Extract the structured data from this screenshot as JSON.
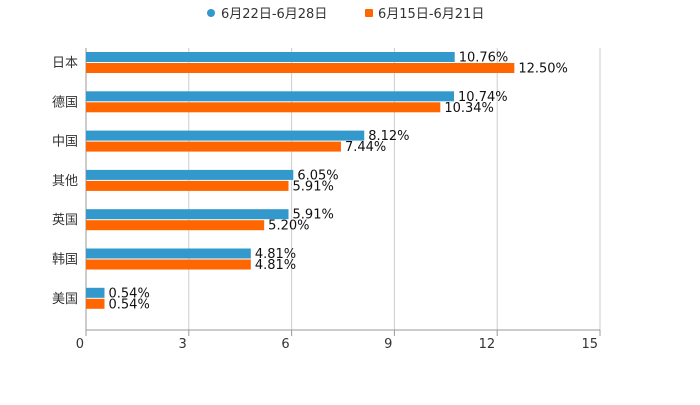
{
  "chart_data": {
    "type": "bar",
    "orientation": "horizontal",
    "categories": [
      "日本",
      "德国",
      "中国",
      "其他",
      "英国",
      "韩国",
      "美国"
    ],
    "series": [
      {
        "name": "6月22日-6月28日",
        "color": "#3399cc",
        "values": [
          10.76,
          10.74,
          8.12,
          6.05,
          5.91,
          4.81,
          0.54
        ],
        "labels": [
          "10.76%",
          "10.74%",
          "8.12%",
          "6.05%",
          "5.91%",
          "4.81%",
          "0.54%"
        ]
      },
      {
        "name": "6月15日-6月21日",
        "color": "#ff6600",
        "values": [
          12.5,
          10.34,
          7.44,
          5.91,
          5.2,
          4.81,
          0.54
        ],
        "labels": [
          "12.50%",
          "10.34%",
          "7.44%",
          "5.91%",
          "5.20%",
          "4.81%",
          "0.54%"
        ]
      }
    ],
    "xlim": [
      0,
      15
    ],
    "xticks": [
      "0",
      "3",
      "6",
      "9",
      "12",
      "15"
    ],
    "grid": true,
    "legend_position": "top-center"
  }
}
